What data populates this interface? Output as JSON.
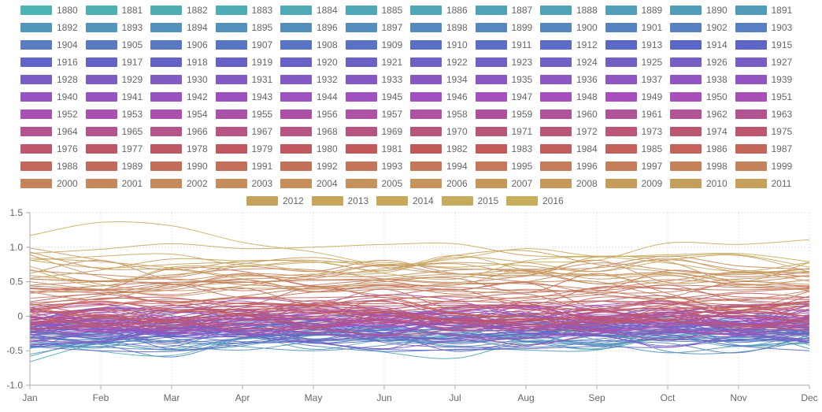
{
  "chart_data": {
    "type": "line",
    "title": "",
    "xlabel": "",
    "ylabel": "",
    "categories": [
      "Jan",
      "Feb",
      "Mar",
      "Apr",
      "May",
      "Jun",
      "Jul",
      "Aug",
      "Sep",
      "Oct",
      "Nov",
      "Dec"
    ],
    "ylim": [
      -1.0,
      1.5
    ],
    "yticks": [
      "1.5",
      "1.0",
      "0.5",
      "0",
      "-0.5",
      "-1.0"
    ],
    "grid": "dotted",
    "legend_position": "top",
    "series_first_year": 1880,
    "series_last_year": 2016,
    "highlighted_series": [
      {
        "name": "2016",
        "values": [
          1.17,
          1.36,
          1.31,
          1.07,
          0.93,
          0.75,
          0.83,
          0.98,
          0.87,
          0.89,
          0.91,
          0.79
        ]
      },
      {
        "name": "2015",
        "values": [
          0.81,
          0.87,
          0.9,
          0.74,
          0.78,
          0.78,
          0.71,
          0.78,
          0.81,
          1.06,
          1.04,
          1.11
        ]
      },
      {
        "name": "2014",
        "values": [
          0.68,
          0.44,
          0.71,
          0.72,
          0.79,
          0.62,
          0.54,
          0.8,
          0.86,
          0.77,
          0.65,
          0.78
        ]
      }
    ],
    "color_stops": [
      "#4db3b3",
      "#5c66c7",
      "#a64fbf",
      "#c25959",
      "#c7ad5c"
    ]
  }
}
